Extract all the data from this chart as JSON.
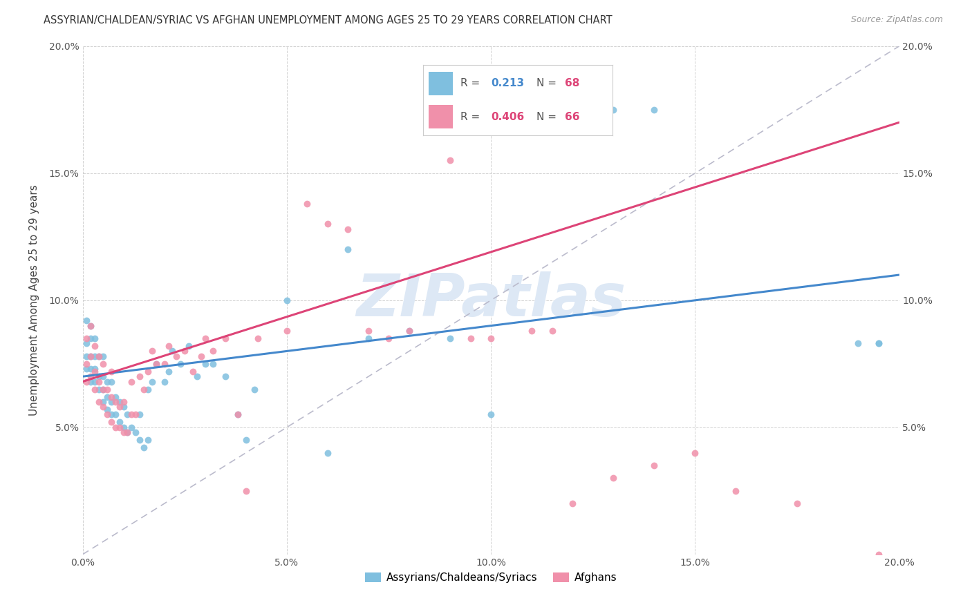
{
  "title": "ASSYRIAN/CHALDEAN/SYRIAC VS AFGHAN UNEMPLOYMENT AMONG AGES 25 TO 29 YEARS CORRELATION CHART",
  "source": "Source: ZipAtlas.com",
  "ylabel": "Unemployment Among Ages 25 to 29 years",
  "xlim": [
    0.0,
    0.2
  ],
  "ylim": [
    0.0,
    0.2
  ],
  "xtick_vals": [
    0.0,
    0.05,
    0.1,
    0.15,
    0.2
  ],
  "xtick_labels": [
    "0.0%",
    "5.0%",
    "10.0%",
    "15.0%",
    "20.0%"
  ],
  "ytick_vals": [
    0.0,
    0.05,
    0.1,
    0.15,
    0.2
  ],
  "ytick_labels_left": [
    "",
    "5.0%",
    "10.0%",
    "15.0%",
    "20.0%"
  ],
  "ytick_labels_right": [
    "",
    "5.0%",
    "10.0%",
    "15.0%",
    "20.0%"
  ],
  "legend_label1": "Assyrians/Chaldeans/Syriacs",
  "legend_label2": "Afghans",
  "R1": "0.213",
  "N1": "68",
  "R2": "0.406",
  "N2": "66",
  "color_blue": "#7fbfdf",
  "color_pink": "#f090aa",
  "color_line_blue": "#4488cc",
  "color_line_pink": "#dd4477",
  "color_line_dashed": "#bbbbcc",
  "watermark_text": "ZIPatlas",
  "watermark_color": "#dde8f5",
  "blue_line_start_y": 0.07,
  "blue_line_end_y": 0.11,
  "pink_line_start_y": 0.068,
  "pink_line_end_y": 0.17,
  "blue_scatter_x": [
    0.001,
    0.001,
    0.001,
    0.001,
    0.002,
    0.002,
    0.002,
    0.002,
    0.002,
    0.003,
    0.003,
    0.003,
    0.003,
    0.004,
    0.004,
    0.004,
    0.005,
    0.005,
    0.005,
    0.005,
    0.006,
    0.006,
    0.006,
    0.007,
    0.007,
    0.007,
    0.008,
    0.008,
    0.009,
    0.009,
    0.01,
    0.01,
    0.011,
    0.011,
    0.012,
    0.013,
    0.014,
    0.014,
    0.015,
    0.016,
    0.016,
    0.017,
    0.018,
    0.02,
    0.021,
    0.022,
    0.024,
    0.026,
    0.028,
    0.03,
    0.032,
    0.035,
    0.038,
    0.04,
    0.042,
    0.05,
    0.06,
    0.065,
    0.07,
    0.08,
    0.09,
    0.1,
    0.115,
    0.13,
    0.14,
    0.19,
    0.195,
    0.195
  ],
  "blue_scatter_y": [
    0.073,
    0.078,
    0.083,
    0.092,
    0.068,
    0.073,
    0.078,
    0.085,
    0.09,
    0.068,
    0.073,
    0.078,
    0.085,
    0.065,
    0.07,
    0.078,
    0.06,
    0.065,
    0.07,
    0.078,
    0.057,
    0.062,
    0.068,
    0.055,
    0.06,
    0.068,
    0.055,
    0.062,
    0.052,
    0.06,
    0.05,
    0.058,
    0.048,
    0.055,
    0.05,
    0.048,
    0.045,
    0.055,
    0.042,
    0.045,
    0.065,
    0.068,
    0.075,
    0.068,
    0.072,
    0.08,
    0.075,
    0.082,
    0.07,
    0.075,
    0.075,
    0.07,
    0.055,
    0.045,
    0.065,
    0.1,
    0.04,
    0.12,
    0.085,
    0.088,
    0.085,
    0.055,
    0.18,
    0.175,
    0.175,
    0.083,
    0.083,
    0.083
  ],
  "pink_scatter_x": [
    0.001,
    0.001,
    0.001,
    0.002,
    0.002,
    0.002,
    0.003,
    0.003,
    0.003,
    0.004,
    0.004,
    0.004,
    0.005,
    0.005,
    0.005,
    0.006,
    0.006,
    0.007,
    0.007,
    0.007,
    0.008,
    0.008,
    0.009,
    0.009,
    0.01,
    0.01,
    0.011,
    0.012,
    0.012,
    0.013,
    0.014,
    0.015,
    0.016,
    0.017,
    0.018,
    0.02,
    0.021,
    0.023,
    0.025,
    0.027,
    0.029,
    0.03,
    0.032,
    0.035,
    0.038,
    0.04,
    0.043,
    0.05,
    0.055,
    0.06,
    0.065,
    0.07,
    0.075,
    0.08,
    0.09,
    0.095,
    0.1,
    0.11,
    0.115,
    0.12,
    0.13,
    0.14,
    0.15,
    0.16,
    0.175,
    0.195
  ],
  "pink_scatter_y": [
    0.068,
    0.075,
    0.085,
    0.07,
    0.078,
    0.09,
    0.065,
    0.072,
    0.082,
    0.06,
    0.068,
    0.078,
    0.058,
    0.065,
    0.075,
    0.055,
    0.065,
    0.052,
    0.062,
    0.072,
    0.05,
    0.06,
    0.05,
    0.058,
    0.048,
    0.06,
    0.048,
    0.055,
    0.068,
    0.055,
    0.07,
    0.065,
    0.072,
    0.08,
    0.075,
    0.075,
    0.082,
    0.078,
    0.08,
    0.072,
    0.078,
    0.085,
    0.08,
    0.085,
    0.055,
    0.025,
    0.085,
    0.088,
    0.138,
    0.13,
    0.128,
    0.088,
    0.085,
    0.088,
    0.155,
    0.085,
    0.085,
    0.088,
    0.088,
    0.02,
    0.03,
    0.035,
    0.04,
    0.025,
    0.02,
    0.0
  ]
}
